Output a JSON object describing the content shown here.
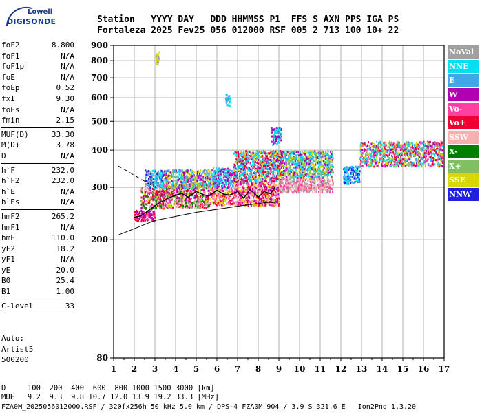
{
  "logo": {
    "line1": "Lowell",
    "line2": "DIGISONDE"
  },
  "header": {
    "labels": "Station   YYYY DAY   DDD HHMMSS P1  FFS S AXN PPS IGA PS",
    "values": "Fortaleza 2025 Fev25 056 012000 RSF 005 2 713 100 10+ 22"
  },
  "params_group1": [
    {
      "name": "foF2",
      "value": "8.800"
    },
    {
      "name": "foF1",
      "value": "N/A"
    },
    {
      "name": "foF1p",
      "value": "N/A"
    },
    {
      "name": "foE",
      "value": "N/A"
    },
    {
      "name": "foEp",
      "value": "0.52"
    },
    {
      "name": "fxI",
      "value": "9.30"
    },
    {
      "name": "foEs",
      "value": "N/A"
    },
    {
      "name": "fmin",
      "value": "2.15"
    }
  ],
  "params_group2": [
    {
      "name": "MUF(D)",
      "value": "33.30"
    },
    {
      "name": "M(D)",
      "value": "3.78"
    },
    {
      "name": "D",
      "value": "N/A"
    }
  ],
  "params_group3": [
    {
      "name": "h`F",
      "value": "232.0"
    },
    {
      "name": "h`F2",
      "value": "232.0"
    },
    {
      "name": "h`E",
      "value": "N/A"
    },
    {
      "name": "h`Es",
      "value": "N/A"
    }
  ],
  "params_group4": [
    {
      "name": "hmF2",
      "value": "265.2"
    },
    {
      "name": "hmF1",
      "value": "N/A"
    },
    {
      "name": "hmE",
      "value": "110.0"
    },
    {
      "name": "yF2",
      "value": "18.2"
    },
    {
      "name": "yF1",
      "value": "N/A"
    },
    {
      "name": "yE",
      "value": "20.0"
    },
    {
      "name": "B0",
      "value": "25.4"
    },
    {
      "name": "B1",
      "value": "1.00"
    }
  ],
  "params_group5": [
    {
      "name": "C-level",
      "value": "33"
    }
  ],
  "auto": {
    "line1": "Auto:",
    "line2": "Artist5",
    "line3": "500200"
  },
  "bottom": {
    "d_row": "D     100  200  400  600  800 1000 1500 3000 [km]",
    "muf_row": "MUF   9.2  9.3  9.8 10.7 12.0 13.9 19.2 33.3 [MHz]",
    "file_row": "FZA0M_2025056012000.RSF / 320fx256h 50 kHz 5.0 km / DPS-4 FZA0M 904 / 3.9 S 321.6 E   Ion2Png 1.3.20"
  },
  "legend": [
    {
      "label": "NoVal",
      "color": "#a0a0a0"
    },
    {
      "label": "NNE",
      "color": "#00e0f0"
    },
    {
      "label": "E",
      "color": "#40a8e8"
    },
    {
      "label": "W",
      "color": "#b000b0"
    },
    {
      "label": "Vo-",
      "color": "#ff40a0"
    },
    {
      "label": "Vo+",
      "color": "#f00030"
    },
    {
      "label": "SSW",
      "color": "#f8b0b0"
    },
    {
      "label": "X-",
      "color": "#008000"
    },
    {
      "label": "X+",
      "color": "#80c060"
    },
    {
      "label": "SSE",
      "color": "#d8d800"
    },
    {
      "label": "NNW",
      "color": "#2020e0"
    }
  ],
  "chart_data": {
    "type": "scatter",
    "title": "",
    "xlabel": "",
    "ylabel": "",
    "xlim": [
      1,
      17
    ],
    "ylim": [
      80,
      900
    ],
    "y_scale": "log",
    "x_ticks": [
      1,
      2,
      3,
      4,
      5,
      6,
      7,
      8,
      9,
      10,
      11,
      12,
      13,
      14,
      15,
      16,
      17
    ],
    "y_ticks": [
      80,
      200,
      300,
      400,
      500,
      600,
      700,
      800,
      900
    ],
    "grid": true,
    "legend_position": "right",
    "profile": {
      "x": [
        2.0,
        2.3,
        2.6,
        3.0,
        3.3,
        3.6,
        4.0,
        4.3,
        4.6,
        5.0,
        5.3,
        5.6,
        6.0,
        6.3,
        6.6,
        7.0,
        7.3,
        7.6,
        8.0,
        8.3,
        8.6,
        8.8
      ],
      "y": [
        238,
        240,
        248,
        260,
        268,
        275,
        282,
        286,
        278,
        290,
        284,
        280,
        293,
        285,
        282,
        290,
        276,
        295,
        278,
        290,
        285,
        300
      ]
    },
    "envelope_upper": {
      "x": [
        1.2,
        3.0
      ],
      "y": [
        355,
        300
      ]
    },
    "envelope_lower": {
      "x": [
        1.2,
        3.0,
        5.0,
        7.0,
        8.5,
        8.85
      ],
      "y": [
        207,
        232,
        247,
        259,
        267,
        265
      ]
    },
    "clusters": [
      {
        "x": [
          2.0,
          3.0
        ],
        "y": [
          232,
          252
        ],
        "colors": [
          "#f00030",
          "#ff40a0",
          "#b000b0"
        ]
      },
      {
        "x": [
          2.3,
          3.4
        ],
        "y": [
          255,
          300
        ],
        "colors": [
          "#f00030",
          "#d8d800",
          "#008000",
          "#ff40a0",
          "#b000b0",
          "#f8b0b0"
        ]
      },
      {
        "x": [
          2.5,
          3.4
        ],
        "y": [
          300,
          345
        ],
        "colors": [
          "#40a8e8",
          "#00e0f0",
          "#a0a0a0",
          "#2020e0"
        ]
      },
      {
        "x": [
          3.4,
          5.6
        ],
        "y": [
          258,
          310
        ],
        "colors": [
          "#f00030",
          "#d8d800",
          "#ff40a0",
          "#008000",
          "#b000b0",
          "#f8b0b0",
          "#80c060"
        ]
      },
      {
        "x": [
          3.4,
          5.8
        ],
        "y": [
          300,
          345
        ],
        "colors": [
          "#40a8e8",
          "#00e0f0",
          "#a0a0a0",
          "#b000b0",
          "#d8d800"
        ]
      },
      {
        "x": [
          5.6,
          6.8
        ],
        "y": [
          262,
          300
        ],
        "colors": [
          "#f00030",
          "#f8b0b0",
          "#ff40a0",
          "#d8d800"
        ]
      },
      {
        "x": [
          5.8,
          6.8
        ],
        "y": [
          300,
          350
        ],
        "colors": [
          "#40a8e8",
          "#00e0f0",
          "#b000b0"
        ]
      },
      {
        "x": [
          6.8,
          9.0
        ],
        "y": [
          262,
          315
        ],
        "colors": [
          "#f8b0b0",
          "#f00030",
          "#ff40a0",
          "#b000b0",
          "#d8d800"
        ]
      },
      {
        "x": [
          6.8,
          9.2
        ],
        "y": [
          315,
          400
        ],
        "colors": [
          "#b000b0",
          "#f00030",
          "#d8d800",
          "#40a8e8",
          "#00e0f0"
        ]
      },
      {
        "x": [
          9.0,
          11.6
        ],
        "y": [
          290,
          325
        ],
        "colors": [
          "#f8b0b0",
          "#a0a0a0",
          "#ff40a0"
        ]
      },
      {
        "x": [
          9.2,
          11.6
        ],
        "y": [
          325,
          400
        ],
        "colors": [
          "#00e0f0",
          "#b000b0",
          "#40a8e8",
          "#80c060",
          "#d8d800"
        ]
      },
      {
        "x": [
          12.1,
          12.9
        ],
        "y": [
          310,
          355
        ],
        "colors": [
          "#00e0f0",
          "#40a8e8",
          "#2020e0"
        ]
      },
      {
        "x": [
          12.9,
          16.9
        ],
        "y": [
          355,
          430
        ],
        "colors": [
          "#b000b0",
          "#00e0f0",
          "#40a8e8",
          "#ff40a0",
          "#f00030",
          "#d8d800",
          "#80c060"
        ]
      },
      {
        "x": [
          3.0,
          3.2
        ],
        "y": [
          780,
          860
        ],
        "colors": [
          "#d8d800",
          "#a0a0a0"
        ]
      },
      {
        "x": [
          6.4,
          6.6
        ],
        "y": [
          560,
          620
        ],
        "colors": [
          "#40a8e8",
          "#00e0f0"
        ]
      },
      {
        "x": [
          8.6,
          9.1
        ],
        "y": [
          420,
          480
        ],
        "colors": [
          "#00e0f0",
          "#b000b0"
        ]
      }
    ]
  }
}
